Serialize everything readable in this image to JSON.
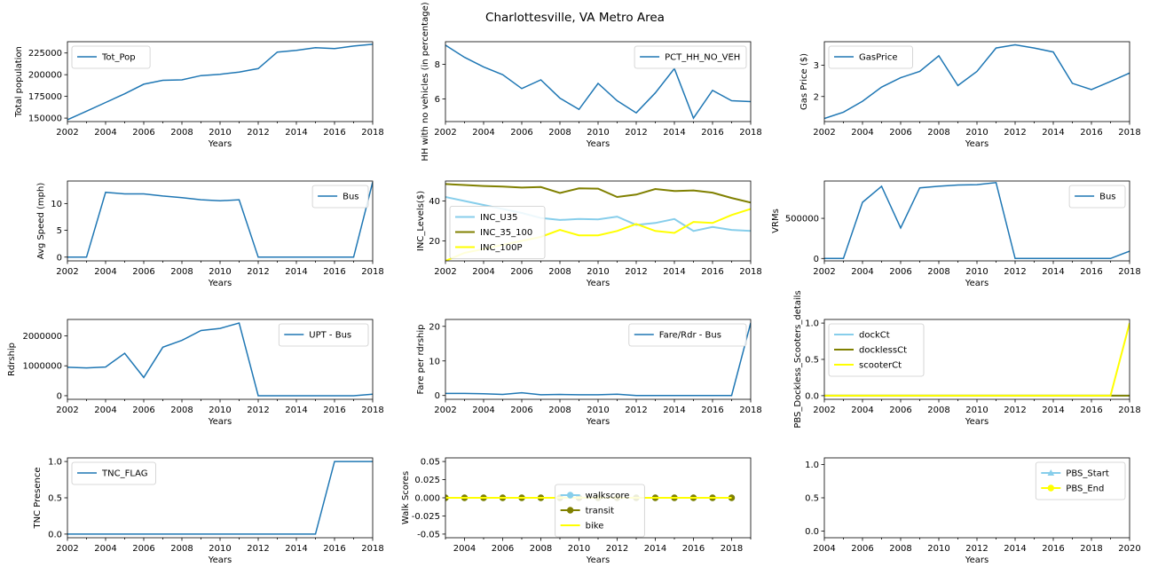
{
  "figure": {
    "title": "Charlottesville, VA Metro Area"
  },
  "chart_data": [
    {
      "type": "line",
      "xlabel": "Years",
      "ylabel": "Total population",
      "xlim": [
        2002,
        2018
      ],
      "ylim": [
        146000,
        238000
      ],
      "xticks": [
        2002,
        2004,
        2006,
        2008,
        2010,
        2012,
        2014,
        2016,
        2018
      ],
      "yticks": [
        150000,
        175000,
        200000,
        225000
      ],
      "ytick_labels": [
        "150000",
        "175000",
        "200000",
        "225000"
      ],
      "legend": "upper-left",
      "series": [
        {
          "name": "Tot_Pop",
          "color": "#1f77b4",
          "x": [
            2002,
            2003,
            2004,
            2005,
            2006,
            2007,
            2008,
            2009,
            2010,
            2011,
            2012,
            2013,
            2014,
            2015,
            2016,
            2017,
            2018
          ],
          "y": [
            148000,
            158000,
            168000,
            178000,
            189000,
            193500,
            194000,
            199000,
            200500,
            203000,
            207000,
            226000,
            228000,
            231000,
            230000,
            233000,
            235000
          ]
        }
      ]
    },
    {
      "type": "line",
      "xlabel": "Years",
      "ylabel": "HH with no vehicles (in percentage)",
      "xlim": [
        2002,
        2018
      ],
      "ylim": [
        4.7,
        9.3
      ],
      "xticks": [
        2002,
        2004,
        2006,
        2008,
        2010,
        2012,
        2014,
        2016,
        2018
      ],
      "yticks": [
        6,
        8
      ],
      "ytick_labels": [
        "6",
        "8"
      ],
      "legend": "upper-right",
      "series": [
        {
          "name": "PCT_HH_NO_VEH",
          "color": "#1f77b4",
          "x": [
            2002,
            2003,
            2004,
            2005,
            2006,
            2007,
            2008,
            2009,
            2010,
            2011,
            2012,
            2013,
            2014,
            2015,
            2016,
            2017,
            2018
          ],
          "y": [
            9.1,
            8.4,
            7.85,
            7.4,
            6.6,
            7.1,
            6.05,
            5.4,
            6.9,
            5.9,
            5.2,
            6.35,
            7.75,
            4.9,
            6.5,
            5.9,
            5.85
          ]
        }
      ]
    },
    {
      "type": "line",
      "xlabel": "Years",
      "ylabel": "Gas Price ($)",
      "xlim": [
        2002,
        2018
      ],
      "ylim": [
        1.2,
        3.75
      ],
      "xticks": [
        2002,
        2004,
        2006,
        2008,
        2010,
        2012,
        2014,
        2016,
        2018
      ],
      "yticks": [
        2,
        3
      ],
      "ytick_labels": [
        "2",
        "3"
      ],
      "legend": "upper-left",
      "series": [
        {
          "name": "GasPrice",
          "color": "#1f77b4",
          "x": [
            2002,
            2003,
            2004,
            2005,
            2006,
            2007,
            2008,
            2009,
            2010,
            2011,
            2012,
            2013,
            2014,
            2015,
            2016,
            2017,
            2018
          ],
          "y": [
            1.3,
            1.5,
            1.85,
            2.3,
            2.6,
            2.8,
            3.3,
            2.35,
            2.8,
            3.55,
            3.65,
            3.55,
            3.42,
            2.42,
            2.22,
            2.48,
            2.75
          ]
        }
      ]
    },
    {
      "type": "line",
      "xlabel": "Years",
      "ylabel": "Avg Speed (mph)",
      "xlim": [
        2002,
        2018
      ],
      "ylim": [
        -0.7,
        14.2
      ],
      "xticks": [
        2002,
        2004,
        2006,
        2008,
        2010,
        2012,
        2014,
        2016,
        2018
      ],
      "yticks": [
        0,
        5,
        10
      ],
      "ytick_labels": [
        "0",
        "5",
        "10"
      ],
      "legend": "upper-right",
      "series": [
        {
          "name": "Bus",
          "color": "#1f77b4",
          "x": [
            2002,
            2003,
            2004,
            2005,
            2006,
            2007,
            2008,
            2009,
            2010,
            2011,
            2012,
            2013,
            2014,
            2015,
            2016,
            2017,
            2018
          ],
          "y": [
            0,
            0,
            12.1,
            11.8,
            11.8,
            11.4,
            11.1,
            10.7,
            10.5,
            10.7,
            0,
            0,
            0,
            0,
            0,
            0,
            14
          ]
        }
      ]
    },
    {
      "type": "line",
      "xlabel": "Years",
      "ylabel": "INC_Levels($)",
      "xlim": [
        2002,
        2018
      ],
      "ylim": [
        10,
        50
      ],
      "xticks": [
        2002,
        2004,
        2006,
        2008,
        2010,
        2012,
        2014,
        2016,
        2018
      ],
      "yticks": [
        20,
        40
      ],
      "ytick_labels": [
        "20",
        "40"
      ],
      "legend": "center-left",
      "series": [
        {
          "name": "INC_U35",
          "color": "#87ceeb",
          "x": [
            2002,
            2003,
            2004,
            2005,
            2006,
            2007,
            2008,
            2009,
            2010,
            2011,
            2012,
            2013,
            2014,
            2015,
            2016,
            2017,
            2018
          ],
          "y": [
            42,
            40,
            38,
            36,
            34,
            31.5,
            30.5,
            31,
            30.8,
            32.2,
            28,
            29,
            31,
            25,
            27,
            25.5,
            25
          ]
        },
        {
          "name": "INC_35_100",
          "color": "#808000",
          "x": [
            2002,
            2003,
            2004,
            2005,
            2006,
            2007,
            2008,
            2009,
            2010,
            2011,
            2012,
            2013,
            2014,
            2015,
            2016,
            2017,
            2018
          ],
          "y": [
            48.5,
            48,
            47.5,
            47.2,
            46.7,
            47,
            44,
            46.3,
            46.2,
            42,
            43.2,
            46,
            45,
            45.3,
            44.2,
            41.5,
            39.2
          ]
        },
        {
          "name": "INC_100P",
          "color": "#ffff00",
          "x": [
            2002,
            2003,
            2004,
            2005,
            2006,
            2007,
            2008,
            2009,
            2010,
            2011,
            2012,
            2013,
            2014,
            2015,
            2016,
            2017,
            2018
          ],
          "y": [
            10,
            14,
            16,
            18,
            20,
            22,
            25.5,
            22.8,
            22.8,
            25,
            28.5,
            25,
            24,
            29.5,
            29,
            33,
            36
          ]
        }
      ]
    },
    {
      "type": "line",
      "xlabel": "Years",
      "ylabel": "VRMs",
      "xlim": [
        2002,
        2018
      ],
      "ylim": [
        -30000,
        965000
      ],
      "xticks": [
        2002,
        2004,
        2006,
        2008,
        2010,
        2012,
        2014,
        2016,
        2018
      ],
      "yticks": [
        0,
        500000
      ],
      "ytick_labels": [
        "0",
        "500000"
      ],
      "legend": "upper-right",
      "series": [
        {
          "name": "Bus",
          "color": "#1f77b4",
          "x": [
            2002,
            2003,
            2004,
            2005,
            2006,
            2007,
            2008,
            2009,
            2010,
            2011,
            2012,
            2013,
            2014,
            2015,
            2016,
            2017,
            2018
          ],
          "y": [
            0,
            0,
            700000,
            900000,
            380000,
            880000,
            900000,
            915000,
            920000,
            945000,
            0,
            0,
            0,
            0,
            0,
            0,
            90000
          ]
        }
      ]
    },
    {
      "type": "line",
      "xlabel": "Years",
      "ylabel": "Rdrship",
      "xlim": [
        2002,
        2018
      ],
      "ylim": [
        -120000,
        2550000
      ],
      "xticks": [
        2002,
        2004,
        2006,
        2008,
        2010,
        2012,
        2014,
        2016,
        2018
      ],
      "yticks": [
        0,
        1000000,
        2000000
      ],
      "ytick_labels": [
        "0",
        "1000000",
        "2000000"
      ],
      "legend": "upper-right",
      "series": [
        {
          "name": "UPT - Bus",
          "color": "#1f77b4",
          "x": [
            2002,
            2003,
            2004,
            2005,
            2006,
            2007,
            2008,
            2009,
            2010,
            2011,
            2012,
            2013,
            2014,
            2015,
            2016,
            2017,
            2018
          ],
          "y": [
            950000,
            930000,
            960000,
            1420000,
            610000,
            1620000,
            1850000,
            2180000,
            2250000,
            2430000,
            0,
            0,
            0,
            0,
            0,
            0,
            50000
          ]
        }
      ]
    },
    {
      "type": "line",
      "xlabel": "Years",
      "ylabel": "Fare per rdrship",
      "xlim": [
        2002,
        2018
      ],
      "ylim": [
        -1.1,
        22
      ],
      "xticks": [
        2002,
        2004,
        2006,
        2008,
        2010,
        2012,
        2014,
        2016,
        2018
      ],
      "yticks": [
        0,
        10,
        20
      ],
      "ytick_labels": [
        "0",
        "10",
        "20"
      ],
      "legend": "upper-right",
      "series": [
        {
          "name": "Fare/Rdr - Bus",
          "color": "#1f77b4",
          "x": [
            2002,
            2003,
            2004,
            2005,
            2006,
            2007,
            2008,
            2009,
            2010,
            2011,
            2012,
            2013,
            2014,
            2015,
            2016,
            2017,
            2018
          ],
          "y": [
            0.6,
            0.6,
            0.5,
            0.3,
            0.8,
            0.2,
            0.3,
            0.2,
            0.2,
            0.4,
            0,
            0,
            0,
            0,
            0,
            0,
            21
          ]
        }
      ]
    },
    {
      "type": "line",
      "xlabel": "Years",
      "ylabel": "PBS_Dockless_Scooters_details",
      "xlim": [
        2002,
        2018
      ],
      "ylim": [
        -0.05,
        1.05
      ],
      "xticks": [
        2002,
        2004,
        2006,
        2008,
        2010,
        2012,
        2014,
        2016,
        2018
      ],
      "yticks": [
        0,
        0.5,
        1
      ],
      "ytick_labels": [
        "0.0",
        "0.5",
        "1.0"
      ],
      "legend": "upper-left",
      "series": [
        {
          "name": "dockCt",
          "color": "#87ceeb",
          "x": [
            2002,
            2003,
            2004,
            2005,
            2006,
            2007,
            2008,
            2009,
            2010,
            2011,
            2012,
            2013,
            2014,
            2015,
            2016,
            2017,
            2018
          ],
          "y": [
            0,
            0,
            0,
            0,
            0,
            0,
            0,
            0,
            0,
            0,
            0,
            0,
            0,
            0,
            0,
            0,
            0
          ]
        },
        {
          "name": "docklessCt",
          "color": "#808000",
          "x": [
            2002,
            2003,
            2004,
            2005,
            2006,
            2007,
            2008,
            2009,
            2010,
            2011,
            2012,
            2013,
            2014,
            2015,
            2016,
            2017,
            2018
          ],
          "y": [
            0,
            0,
            0,
            0,
            0,
            0,
            0,
            0,
            0,
            0,
            0,
            0,
            0,
            0,
            0,
            0,
            0
          ]
        },
        {
          "name": "scooterCt",
          "color": "#ffff00",
          "x": [
            2002,
            2003,
            2004,
            2005,
            2006,
            2007,
            2008,
            2009,
            2010,
            2011,
            2012,
            2013,
            2014,
            2015,
            2016,
            2017,
            2018
          ],
          "y": [
            0,
            0,
            0,
            0,
            0,
            0,
            0,
            0,
            0,
            0,
            0,
            0,
            0,
            0,
            0,
            0,
            1
          ]
        }
      ]
    },
    {
      "type": "line",
      "xlabel": "Years",
      "ylabel": "TNC Presence",
      "xlim": [
        2002,
        2018
      ],
      "ylim": [
        -0.05,
        1.05
      ],
      "xticks": [
        2002,
        2004,
        2006,
        2008,
        2010,
        2012,
        2014,
        2016,
        2018
      ],
      "yticks": [
        0,
        0.5,
        1
      ],
      "ytick_labels": [
        "0.0",
        "0.5",
        "1.0"
      ],
      "legend": "upper-left",
      "series": [
        {
          "name": "TNC_FLAG",
          "color": "#1f77b4",
          "x": [
            2002,
            2003,
            2004,
            2005,
            2006,
            2007,
            2008,
            2009,
            2010,
            2011,
            2012,
            2013,
            2014,
            2015,
            2016,
            2017,
            2018
          ],
          "y": [
            0,
            0,
            0,
            0,
            0,
            0,
            0,
            0,
            0,
            0,
            0,
            0,
            0,
            0,
            1,
            1,
            1
          ]
        }
      ]
    },
    {
      "type": "line",
      "xlabel": "Years",
      "ylabel": "Walk Scores",
      "xlim": [
        2003,
        2019
      ],
      "ylim": [
        -0.055,
        0.055
      ],
      "xticks": [
        2004,
        2006,
        2008,
        2010,
        2012,
        2014,
        2016,
        2018
      ],
      "yticks": [
        -0.05,
        -0.025,
        0,
        0.025,
        0.05
      ],
      "ytick_labels": [
        "-0.05",
        "-0.025",
        "0.000",
        "0.025",
        "0.05"
      ],
      "legend": "lower-center",
      "series": [
        {
          "name": "walkscore",
          "color": "#87ceeb",
          "marker": "circle",
          "x": [
            2003,
            2004,
            2005,
            2006,
            2007,
            2008,
            2009,
            2010,
            2011,
            2012,
            2013,
            2014,
            2015,
            2016,
            2017,
            2018
          ],
          "y": [
            0,
            0,
            0,
            0,
            0,
            0,
            0,
            0,
            0,
            0,
            0,
            0,
            0,
            0,
            0,
            0
          ]
        },
        {
          "name": "transit",
          "color": "#808000",
          "marker": "circle",
          "x": [
            2003,
            2004,
            2005,
            2006,
            2007,
            2008,
            2009,
            2010,
            2011,
            2012,
            2013,
            2014,
            2015,
            2016,
            2017,
            2018
          ],
          "y": [
            0,
            0,
            0,
            0,
            0,
            0,
            0,
            0,
            0,
            0,
            0,
            0,
            0,
            0,
            0,
            0
          ]
        },
        {
          "name": "bike",
          "color": "#ffff00",
          "x": [
            2003,
            2004,
            2005,
            2006,
            2007,
            2008,
            2009,
            2010,
            2011,
            2012,
            2013,
            2014,
            2015,
            2016,
            2017,
            2018
          ],
          "y": [
            0,
            0,
            0,
            0,
            0,
            0,
            0,
            0,
            0,
            0,
            0,
            0,
            0,
            0,
            0,
            0
          ]
        }
      ]
    },
    {
      "type": "line",
      "xlabel": "Years",
      "ylabel": "",
      "xlim": [
        2004,
        2020
      ],
      "ylim": [
        -0.1,
        1.1
      ],
      "xticks": [
        2004,
        2006,
        2008,
        2010,
        2012,
        2014,
        2016,
        2018,
        2020
      ],
      "yticks": [
        0,
        0.5,
        1
      ],
      "ytick_labels": [
        "0.0",
        "0.5",
        "1.0"
      ],
      "legend": "upper-right",
      "series": [
        {
          "name": "PBS_Start",
          "color": "#87ceeb",
          "marker": "triangle",
          "x": [],
          "y": []
        },
        {
          "name": "PBS_End",
          "color": "#ffff00",
          "marker": "circle",
          "x": [],
          "y": []
        }
      ]
    }
  ]
}
